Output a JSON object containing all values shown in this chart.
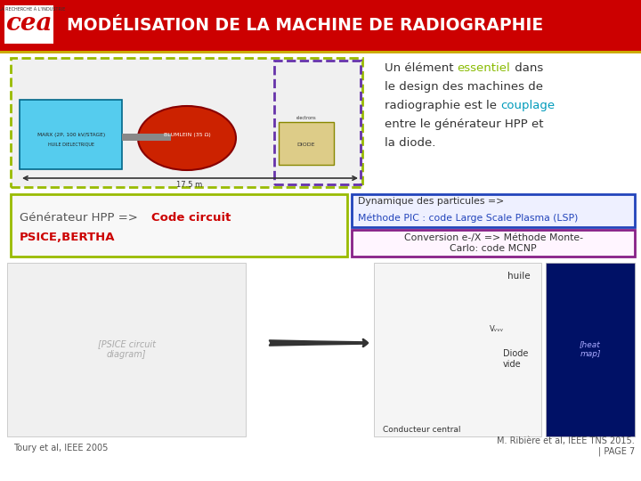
{
  "title": "MODÉLISATION DE LA MACHINE DE RADIOGRAPHIE",
  "header_bg": "#cc0000",
  "header_text_color": "#ffffff",
  "body_bg": "#ffffff",
  "text_line1_a": "Un élément ",
  "text_line1_b": "essentiel",
  "text_line1_b_color": "#88bb00",
  "text_line1_c": " dans",
  "text_line2": "le design des machines de",
  "text_line3_a": "radiographie est le ",
  "text_line3_b": "couplage",
  "text_line3_b_color": "#009bbb",
  "text_line4": "entre le générateur HPP et",
  "text_line5": "la diode.",
  "text_color": "#333333",
  "text_fontsize": 9.5,
  "gen_line1_a": "Générateur HPP => ",
  "gen_line1_b": "Code circuit",
  "gen_line2": "PSICE,BERTHA",
  "gen_color_normal": "#555555",
  "gen_color_red": "#cc0000",
  "gen_box_border": "#99bb00",
  "dyn_line1_a": "Dynamique des particules => ",
  "dyn_line1_b": "Méthode PIC :",
  "dyn_line2": "code Large Scale Plasma (LSP)",
  "dyn_box_border": "#2244bb",
  "dyn_color_blue": "#2244bb",
  "dyn_color_dark": "#333333",
  "conv_line1": "Conversion e-/X => Méthode Monte-",
  "conv_line2": "Carlo: code MCNP",
  "conv_box_border": "#882288",
  "conv_color": "#333333",
  "machine_outer_border": "#99bb00",
  "machine_inner_border": "#6633aa",
  "marx_fill": "#55ccee",
  "blumlein_fill": "#cc2200",
  "diode_fill": "#ddcc88",
  "footer_left": "Toury et al, IEEE 2005",
  "footer_right_1": "M. Ribière et al, IEEE TNS 2015.",
  "footer_right_2": "| PAGE 7",
  "footer_color": "#555555"
}
